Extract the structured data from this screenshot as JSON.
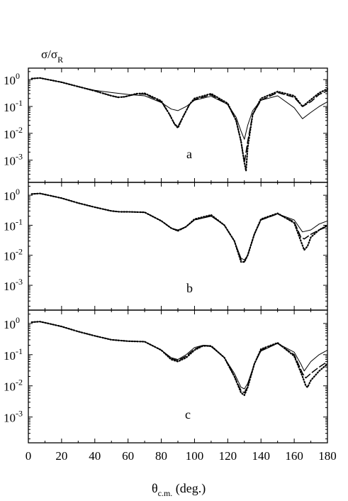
{
  "ylabel": {
    "main": "σ/σ",
    "sub": "R"
  },
  "xlabel": {
    "main": "θ",
    "sub": "c.m.",
    "rest": " (deg.)"
  },
  "chart_data": {
    "type": "line",
    "scale": "log-y",
    "xlim": [
      0,
      180
    ],
    "ylim": [
      0.0002,
      2
    ],
    "x_ticks": [
      0,
      20,
      40,
      60,
      80,
      100,
      120,
      140,
      160,
      180
    ],
    "y_ticks": [
      {
        "base": "10",
        "exp": "0",
        "value": 1
      },
      {
        "base": "10",
        "exp": "-1",
        "value": 0.1
      },
      {
        "base": "10",
        "exp": "-2",
        "value": 0.01
      },
      {
        "base": "10",
        "exp": "-3",
        "value": 0.001
      }
    ],
    "panels": [
      {
        "label": "a",
        "series": [
          {
            "style": "solid",
            "x": [
              2,
              7,
              12,
              20,
              30,
              40,
              50,
              60,
              70,
              80,
              86,
              90,
              95,
              100,
              110,
              120,
              125,
              128,
              130,
              132,
              135,
              140,
              150,
              160,
              165,
              170,
              175,
              180
            ],
            "y": [
              1.1,
              1.15,
              1.0,
              0.8,
              0.55,
              0.4,
              0.33,
              0.28,
              0.25,
              0.14,
              0.08,
              0.07,
              0.1,
              0.17,
              0.24,
              0.12,
              0.04,
              0.012,
              0.006,
              0.02,
              0.07,
              0.17,
              0.25,
              0.09,
              0.035,
              0.06,
              0.1,
              0.15
            ]
          },
          {
            "style": "dashed",
            "x": [
              2,
              7,
              12,
              20,
              30,
              40,
              50,
              54,
              58,
              65,
              70,
              80,
              85,
              88,
              90,
              93,
              97,
              100,
              110,
              120,
              125,
              128,
              130,
              132,
              135,
              140,
              150,
              160,
              165,
              170,
              175,
              180
            ],
            "y": [
              1.1,
              1.15,
              1.0,
              0.8,
              0.55,
              0.38,
              0.25,
              0.22,
              0.23,
              0.29,
              0.29,
              0.15,
              0.05,
              0.022,
              0.018,
              0.04,
              0.12,
              0.18,
              0.27,
              0.12,
              0.03,
              0.005,
              0.0008,
              0.005,
              0.05,
              0.17,
              0.33,
              0.22,
              0.1,
              0.15,
              0.28,
              0.38
            ]
          },
          {
            "style": "dotted",
            "x": [
              2,
              7,
              12,
              20,
              30,
              40,
              50,
              54,
              58,
              65,
              70,
              80,
              85,
              88,
              90,
              93,
              97,
              100,
              110,
              120,
              125,
              128,
              130,
              131,
              132,
              135,
              140,
              150,
              160,
              165,
              170,
              175,
              180
            ],
            "y": [
              1.1,
              1.15,
              1.0,
              0.8,
              0.55,
              0.38,
              0.25,
              0.22,
              0.23,
              0.3,
              0.31,
              0.16,
              0.05,
              0.022,
              0.016,
              0.04,
              0.12,
              0.2,
              0.3,
              0.13,
              0.03,
              0.005,
              0.0008,
              0.0004,
              0.003,
              0.05,
              0.2,
              0.36,
              0.25,
              0.1,
              0.18,
              0.32,
              0.45
            ]
          }
        ]
      },
      {
        "label": "b",
        "series": [
          {
            "style": "solid",
            "x": [
              2,
              7,
              12,
              20,
              30,
              40,
              50,
              55,
              60,
              70,
              80,
              86,
              90,
              95,
              100,
              110,
              118,
              124,
              128,
              130,
              132,
              136,
              140,
              150,
              160,
              165,
              170,
              175,
              180
            ],
            "y": [
              1.1,
              1.15,
              1.0,
              0.8,
              0.55,
              0.4,
              0.3,
              0.28,
              0.28,
              0.27,
              0.14,
              0.08,
              0.07,
              0.09,
              0.15,
              0.2,
              0.1,
              0.03,
              0.008,
              0.007,
              0.01,
              0.05,
              0.15,
              0.24,
              0.15,
              0.06,
              0.07,
              0.11,
              0.14
            ]
          },
          {
            "style": "dashed",
            "x": [
              2,
              7,
              12,
              20,
              30,
              40,
              50,
              55,
              60,
              70,
              80,
              86,
              90,
              95,
              100,
              110,
              118,
              124,
              128,
              130,
              132,
              136,
              140,
              150,
              160,
              164,
              166,
              170,
              175,
              180
            ],
            "y": [
              1.1,
              1.15,
              1.0,
              0.8,
              0.55,
              0.4,
              0.3,
              0.28,
              0.28,
              0.27,
              0.14,
              0.08,
              0.065,
              0.09,
              0.15,
              0.21,
              0.1,
              0.03,
              0.007,
              0.006,
              0.01,
              0.05,
              0.15,
              0.24,
              0.13,
              0.04,
              0.035,
              0.05,
              0.07,
              0.09
            ]
          },
          {
            "style": "dotted",
            "x": [
              2,
              7,
              12,
              20,
              30,
              40,
              50,
              55,
              60,
              70,
              80,
              86,
              90,
              95,
              100,
              110,
              118,
              124,
              128,
              130,
              132,
              136,
              140,
              150,
              160,
              164,
              166,
              168,
              170,
              175,
              180
            ],
            "y": [
              1.1,
              1.15,
              1.0,
              0.8,
              0.55,
              0.4,
              0.3,
              0.28,
              0.28,
              0.27,
              0.14,
              0.08,
              0.065,
              0.09,
              0.16,
              0.22,
              0.1,
              0.03,
              0.006,
              0.006,
              0.01,
              0.05,
              0.16,
              0.25,
              0.12,
              0.03,
              0.015,
              0.02,
              0.04,
              0.07,
              0.1
            ]
          }
        ]
      },
      {
        "label": "c",
        "series": [
          {
            "style": "solid",
            "x": [
              2,
              7,
              12,
              20,
              30,
              40,
              50,
              60,
              70,
              80,
              86,
              90,
              95,
              100,
              105,
              110,
              118,
              124,
              128,
              130,
              132,
              136,
              140,
              150,
              160,
              164,
              166,
              170,
              175,
              180
            ],
            "y": [
              1.1,
              1.15,
              1.0,
              0.8,
              0.55,
              0.4,
              0.3,
              0.27,
              0.26,
              0.14,
              0.08,
              0.07,
              0.1,
              0.17,
              0.2,
              0.18,
              0.08,
              0.025,
              0.009,
              0.008,
              0.012,
              0.05,
              0.13,
              0.23,
              0.12,
              0.05,
              0.03,
              0.06,
              0.1,
              0.14
            ]
          },
          {
            "style": "dashed",
            "x": [
              2,
              7,
              12,
              20,
              30,
              40,
              50,
              60,
              70,
              80,
              86,
              90,
              95,
              100,
              105,
              110,
              118,
              124,
              128,
              130,
              132,
              136,
              140,
              150,
              160,
              165,
              167,
              170,
              175,
              180
            ],
            "y": [
              1.1,
              1.15,
              1.0,
              0.8,
              0.55,
              0.4,
              0.3,
              0.27,
              0.26,
              0.14,
              0.075,
              0.065,
              0.09,
              0.15,
              0.2,
              0.19,
              0.08,
              0.02,
              0.007,
              0.006,
              0.01,
              0.05,
              0.14,
              0.23,
              0.1,
              0.025,
              0.018,
              0.025,
              0.04,
              0.06
            ]
          },
          {
            "style": "dotted",
            "x": [
              2,
              7,
              12,
              20,
              30,
              40,
              50,
              60,
              70,
              80,
              86,
              90,
              95,
              100,
              105,
              110,
              118,
              124,
              128,
              130,
              132,
              136,
              140,
              150,
              160,
              165,
              167,
              168,
              170,
              175,
              180
            ],
            "y": [
              1.1,
              1.15,
              1.0,
              0.8,
              0.55,
              0.4,
              0.3,
              0.27,
              0.26,
              0.14,
              0.07,
              0.06,
              0.08,
              0.14,
              0.19,
              0.19,
              0.08,
              0.02,
              0.006,
              0.005,
              0.009,
              0.05,
              0.15,
              0.24,
              0.09,
              0.02,
              0.01,
              0.009,
              0.015,
              0.03,
              0.05
            ]
          }
        ]
      }
    ]
  }
}
